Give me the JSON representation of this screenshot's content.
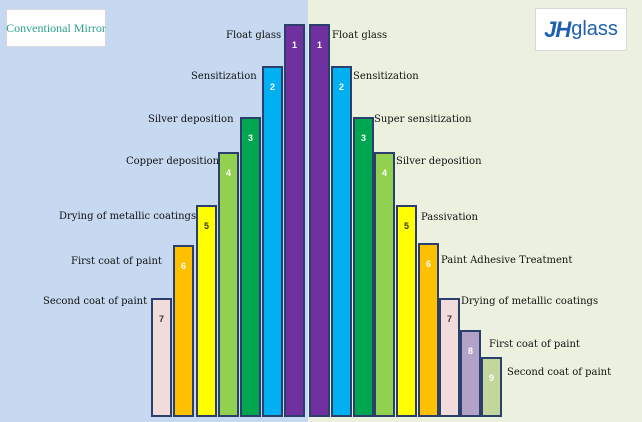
{
  "conventional": {
    "title": "Conventional Mirror",
    "steps": [
      {
        "num": "1",
        "label": "Float glass",
        "color": "#7030a0"
      },
      {
        "num": "2",
        "label": "Sensitization",
        "color": "#00b0f0"
      },
      {
        "num": "3",
        "label": "Silver deposition",
        "color": "#00a650"
      },
      {
        "num": "4",
        "label": "Copper deposition",
        "color": "#92d050"
      },
      {
        "num": "5",
        "label": "Drying of metallic coatings",
        "color": "#ffff00"
      },
      {
        "num": "6",
        "label": "First coat of paint",
        "color": "#ffc000"
      },
      {
        "num": "7",
        "label": "Second coat of paint",
        "color": "#f2dcdb"
      }
    ]
  },
  "jhglass": {
    "logo_main": "JH",
    "logo_suffix": "glass",
    "steps": [
      {
        "num": "1",
        "label": "Float glass",
        "color": "#7030a0"
      },
      {
        "num": "2",
        "label": "Sensitization",
        "color": "#00b0f0"
      },
      {
        "num": "3",
        "label": "Super sensitization",
        "color": "#00a650"
      },
      {
        "num": "4",
        "label": "Silver deposition",
        "color": "#92d050"
      },
      {
        "num": "5",
        "label": "Passivation",
        "color": "#ffff00"
      },
      {
        "num": "6",
        "label": "Paint Adhesive Treatment",
        "color": "#ffc000"
      },
      {
        "num": "7",
        "label": "Drying of metallic coatings",
        "color": "#f2dcdb"
      },
      {
        "num": "8",
        "label": "First coat of paint",
        "color": "#b3a2c7"
      },
      {
        "num": "9",
        "label": "Second coat of paint",
        "color": "#c3d69b"
      }
    ]
  }
}
